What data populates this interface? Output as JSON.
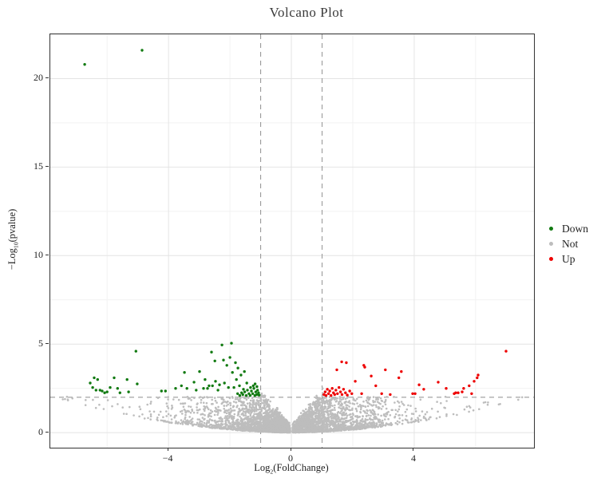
{
  "colors": {
    "background": "#ffffff",
    "panel_border": "#333333",
    "grid_major": "#e4e4e4",
    "grid_minor": "#f2f2f2",
    "threshold": "#9a9a9a",
    "down": "#117a11",
    "not": "#bdbdbd",
    "up": "#ee0000",
    "text": "#1f1f1f"
  },
  "chart_data": {
    "type": "scatter",
    "title": "Volcano Plot",
    "xlabel": {
      "prefix": "Log",
      "sub": "2",
      "suffix": "(FoldChange)"
    },
    "ylabel": {
      "prefix": "−Log",
      "sub": "10",
      "suffix": "(pvalue)"
    },
    "xlim": [
      -7.85,
      7.9
    ],
    "ylim": [
      -0.85,
      22.5
    ],
    "x_ticks": [
      {
        "value": -4,
        "label": "−4"
      },
      {
        "value": 0,
        "label": "0"
      },
      {
        "value": 4,
        "label": "4"
      }
    ],
    "y_ticks": [
      {
        "value": 0,
        "label": "0"
      },
      {
        "value": 5,
        "label": "5"
      },
      {
        "value": 10,
        "label": "10"
      },
      {
        "value": 15,
        "label": "15"
      },
      {
        "value": 20,
        "label": "20"
      }
    ],
    "grid": {
      "major_x": [
        -4,
        0,
        4
      ],
      "minor_x": [
        -6,
        -2,
        2,
        6
      ],
      "major_y": [
        0,
        5,
        10,
        15,
        20
      ],
      "minor_y": [
        2.5,
        7.5,
        12.5,
        17.5,
        22.5
      ]
    },
    "threshold_lines": {
      "vertical_x": [
        -1,
        1
      ],
      "horizontal_y": 2,
      "style": "dashed",
      "color": "#9a9a9a"
    },
    "legend": {
      "position": "right",
      "items": [
        {
          "label": "Down",
          "color": "#117a11"
        },
        {
          "label": "Not",
          "color": "#bdbdbd"
        },
        {
          "label": "Up",
          "color": "#ee0000"
        }
      ]
    },
    "series": [
      {
        "name": "Down",
        "color": "#117a11",
        "points": [
          [
            -6.73,
            20.8
          ],
          [
            -4.86,
            21.6
          ],
          [
            -6.55,
            2.8
          ],
          [
            -6.47,
            2.55
          ],
          [
            -6.42,
            3.1
          ],
          [
            -6.36,
            2.4
          ],
          [
            -6.31,
            3.0
          ],
          [
            -6.23,
            2.4
          ],
          [
            -6.16,
            2.35
          ],
          [
            -6.08,
            2.25
          ],
          [
            -6.0,
            2.3
          ],
          [
            -5.9,
            2.55
          ],
          [
            -5.77,
            3.1
          ],
          [
            -5.66,
            2.5
          ],
          [
            -5.58,
            2.25
          ],
          [
            -5.35,
            3.0
          ],
          [
            -5.3,
            2.3
          ],
          [
            -5.06,
            4.6
          ],
          [
            -5.02,
            2.75
          ],
          [
            -4.23,
            2.35
          ],
          [
            -4.1,
            2.35
          ],
          [
            -3.77,
            2.5
          ],
          [
            -3.58,
            2.65
          ],
          [
            -3.48,
            3.4
          ],
          [
            -3.4,
            2.5
          ],
          [
            -3.17,
            2.85
          ],
          [
            -3.1,
            2.4
          ],
          [
            -2.99,
            3.45
          ],
          [
            -2.86,
            2.5
          ],
          [
            -2.81,
            3.0
          ],
          [
            -2.73,
            2.5
          ],
          [
            -2.68,
            2.65
          ],
          [
            -2.6,
            4.55
          ],
          [
            -2.57,
            2.65
          ],
          [
            -2.49,
            4.05
          ],
          [
            -2.47,
            2.9
          ],
          [
            -2.39,
            2.4
          ],
          [
            -2.34,
            2.7
          ],
          [
            -2.26,
            4.95
          ],
          [
            -2.21,
            4.1
          ],
          [
            -2.18,
            2.8
          ],
          [
            -2.1,
            3.8
          ],
          [
            -2.05,
            2.55
          ],
          [
            -2.0,
            4.25
          ],
          [
            -1.95,
            5.05
          ],
          [
            -1.92,
            3.4
          ],
          [
            -1.87,
            2.55
          ],
          [
            -1.82,
            3.95
          ],
          [
            -1.79,
            3.0
          ],
          [
            -1.74,
            3.65
          ],
          [
            -1.69,
            2.65
          ],
          [
            -1.64,
            3.25
          ],
          [
            -1.56,
            2.45
          ],
          [
            -1.53,
            3.45
          ],
          [
            -1.45,
            2.8
          ],
          [
            -1.75,
            2.2
          ],
          [
            -1.68,
            2.1
          ],
          [
            -1.62,
            2.25
          ],
          [
            -1.58,
            2.15
          ],
          [
            -1.52,
            2.3
          ],
          [
            -1.47,
            2.1
          ],
          [
            -1.43,
            2.4
          ],
          [
            -1.38,
            2.2
          ],
          [
            -1.34,
            2.1
          ],
          [
            -1.3,
            2.35
          ],
          [
            -1.26,
            2.2
          ],
          [
            -1.22,
            2.5
          ],
          [
            -1.19,
            2.1
          ],
          [
            -1.16,
            2.3
          ],
          [
            -1.13,
            2.15
          ],
          [
            -1.1,
            2.4
          ],
          [
            -1.07,
            2.25
          ],
          [
            -1.05,
            2.12
          ],
          [
            -1.33,
            2.55
          ],
          [
            -1.24,
            2.65
          ],
          [
            -1.12,
            2.6
          ],
          [
            -1.18,
            2.75
          ]
        ]
      },
      {
        "name": "Up",
        "color": "#ee0000",
        "points": [
          [
            6.99,
            4.6
          ],
          [
            1.06,
            2.15
          ],
          [
            1.1,
            2.3
          ],
          [
            1.13,
            2.1
          ],
          [
            1.17,
            2.45
          ],
          [
            1.21,
            2.2
          ],
          [
            1.25,
            2.35
          ],
          [
            1.29,
            2.1
          ],
          [
            1.33,
            2.5
          ],
          [
            1.37,
            2.25
          ],
          [
            1.41,
            2.15
          ],
          [
            1.45,
            2.4
          ],
          [
            1.5,
            2.2
          ],
          [
            1.55,
            2.55
          ],
          [
            1.6,
            2.3
          ],
          [
            1.65,
            2.15
          ],
          [
            1.7,
            2.45
          ],
          [
            1.76,
            2.25
          ],
          [
            1.82,
            2.12
          ],
          [
            1.9,
            2.35
          ],
          [
            1.97,
            2.2
          ],
          [
            1.48,
            3.55
          ],
          [
            1.64,
            4.0
          ],
          [
            1.79,
            3.95
          ],
          [
            2.08,
            2.9
          ],
          [
            2.29,
            2.2
          ],
          [
            2.36,
            3.8
          ],
          [
            2.39,
            3.7
          ],
          [
            2.6,
            3.2
          ],
          [
            2.75,
            2.65
          ],
          [
            2.94,
            2.2
          ],
          [
            3.06,
            3.55
          ],
          [
            3.22,
            2.15
          ],
          [
            3.5,
            3.1
          ],
          [
            3.58,
            3.45
          ],
          [
            3.95,
            2.2
          ],
          [
            4.03,
            2.2
          ],
          [
            4.16,
            2.7
          ],
          [
            4.31,
            2.45
          ],
          [
            4.78,
            2.85
          ],
          [
            5.04,
            2.5
          ],
          [
            5.3,
            2.2
          ],
          [
            5.35,
            2.25
          ],
          [
            5.43,
            2.25
          ],
          [
            5.56,
            2.3
          ],
          [
            5.61,
            2.5
          ],
          [
            5.79,
            2.65
          ],
          [
            5.87,
            2.2
          ],
          [
            5.95,
            2.9
          ],
          [
            6.05,
            3.1
          ],
          [
            6.08,
            3.25
          ]
        ]
      },
      {
        "name": "Not",
        "color": "#bdbdbd",
        "generated": {
          "count": 4800,
          "seed": 987654321,
          "x_min": 0.04,
          "x_exp_mean": 1.07,
          "x_clamp": 7.55,
          "floor_quad": 0.031,
          "floor_lin": 0.018,
          "floor_jitter": 0.07,
          "notch_base": 0.28,
          "notch_slope": 2.0,
          "notch_jitter": 0.5,
          "notch_max": 2.6,
          "cap_above": 2.03,
          "y_pow": 2.4
        }
      }
    ]
  }
}
